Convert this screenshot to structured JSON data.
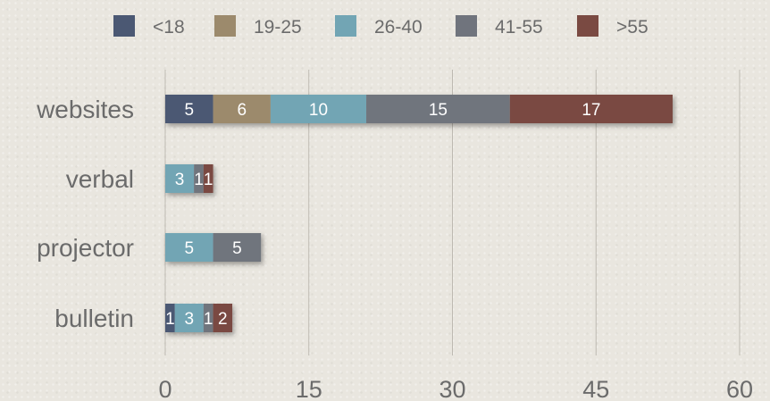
{
  "chart_data": {
    "type": "bar",
    "orientation": "horizontal",
    "stacked": true,
    "categories": [
      "websites",
      "verbal",
      "projector",
      "bulletin"
    ],
    "series": [
      {
        "name": "<18",
        "color": "#4b5873",
        "values": [
          5,
          0,
          0,
          1
        ]
      },
      {
        "name": "19-25",
        "color": "#9c8a6c",
        "values": [
          6,
          0,
          0,
          0
        ]
      },
      {
        "name": "26-40",
        "color": "#72a5b4",
        "values": [
          10,
          3,
          5,
          3
        ]
      },
      {
        "name": "41-55",
        "color": "#70747d",
        "values": [
          15,
          1,
          5,
          1
        ]
      },
      {
        "name": ">55",
        "color": "#7a4a42",
        "values": [
          17,
          1,
          0,
          2
        ]
      }
    ],
    "xticks": [
      "0",
      "15",
      "30",
      "45",
      "60"
    ],
    "xlim": [
      0,
      60
    ],
    "grid": true,
    "legend_position": "top",
    "title": "",
    "xlabel": "",
    "ylabel": ""
  }
}
